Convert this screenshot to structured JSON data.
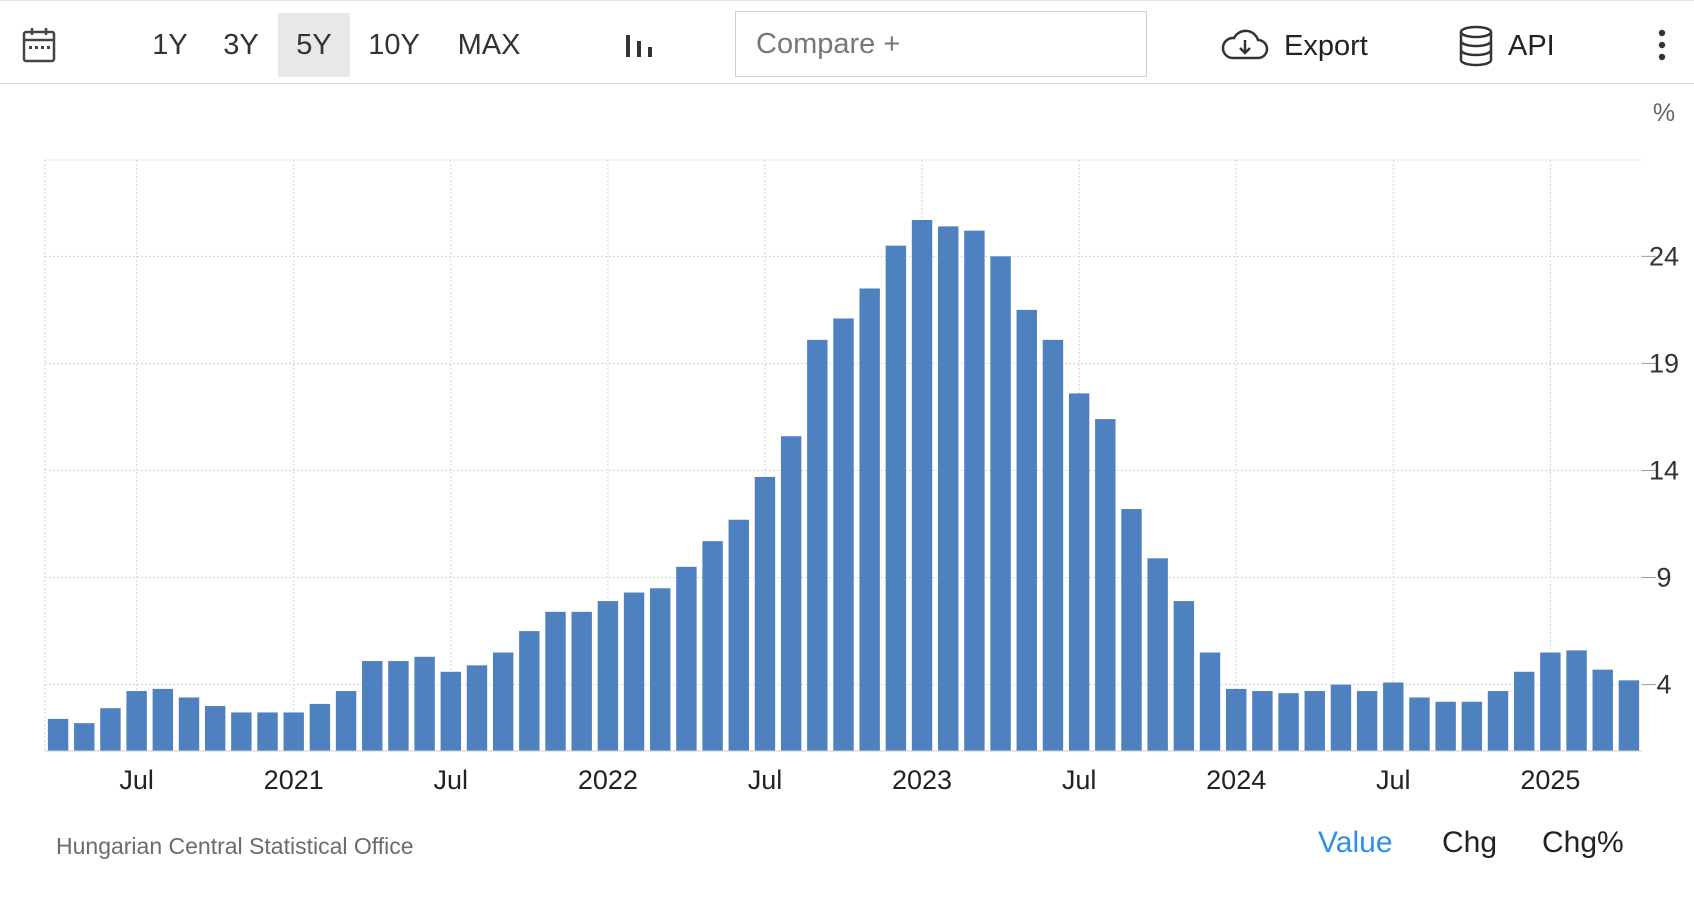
{
  "toolbar": {
    "ranges": [
      "1Y",
      "3Y",
      "5Y",
      "10Y",
      "MAX"
    ],
    "active_range": "5Y",
    "compare_placeholder": "Compare +",
    "export_label": "Export",
    "api_label": "API",
    "icons": {
      "calendar": "calendar-icon",
      "chart_type": "bar-chart-icon",
      "export": "cloud-download-icon",
      "api": "database-icon",
      "more": "more-vertical-icon"
    }
  },
  "chart_data": {
    "type": "bar",
    "unit": "%",
    "bar_color": "#4f81c0",
    "grid": true,
    "y_axis_position": "right",
    "ylim": [
      0.9,
      28.5
    ],
    "yticks": [
      4,
      9,
      14,
      19,
      24
    ],
    "x_labels": [
      "Jul",
      "2021",
      "Jul",
      "2022",
      "Jul",
      "2023",
      "Jul",
      "2024",
      "Jul",
      "2025"
    ],
    "categories": [
      "2020-04",
      "2020-05",
      "2020-06",
      "2020-07",
      "2020-08",
      "2020-09",
      "2020-10",
      "2020-11",
      "2020-12",
      "2021-01",
      "2021-02",
      "2021-03",
      "2021-04",
      "2021-05",
      "2021-06",
      "2021-07",
      "2021-08",
      "2021-09",
      "2021-10",
      "2021-11",
      "2021-12",
      "2022-01",
      "2022-02",
      "2022-03",
      "2022-04",
      "2022-05",
      "2022-06",
      "2022-07",
      "2022-08",
      "2022-09",
      "2022-10",
      "2022-11",
      "2022-12",
      "2023-01",
      "2023-02",
      "2023-03",
      "2023-04",
      "2023-05",
      "2023-06",
      "2023-07",
      "2023-08",
      "2023-09",
      "2023-10",
      "2023-11",
      "2023-12",
      "2024-01",
      "2024-02",
      "2024-03",
      "2024-04",
      "2024-05",
      "2024-06",
      "2024-07",
      "2024-08",
      "2024-09",
      "2024-10",
      "2024-11",
      "2024-12",
      "2025-01",
      "2025-02",
      "2025-03",
      "2025-04"
    ],
    "values": [
      2.4,
      2.2,
      2.9,
      3.7,
      3.8,
      3.4,
      3.0,
      2.7,
      2.7,
      2.7,
      3.1,
      3.7,
      5.1,
      5.1,
      5.3,
      4.6,
      4.9,
      5.5,
      6.5,
      7.4,
      7.4,
      7.9,
      8.3,
      8.5,
      9.5,
      10.7,
      11.7,
      13.7,
      15.6,
      20.1,
      21.1,
      22.5,
      24.5,
      25.7,
      25.4,
      25.2,
      24.0,
      21.5,
      20.1,
      17.6,
      16.4,
      12.2,
      9.9,
      7.9,
      5.5,
      3.8,
      3.7,
      3.6,
      3.7,
      4.0,
      3.7,
      4.1,
      3.4,
      3.2,
      3.2,
      3.7,
      4.6,
      5.5,
      5.6,
      4.7,
      4.2
    ]
  },
  "footer": {
    "source": "Hungarian Central Statistical Office",
    "modes": [
      "Value",
      "Chg",
      "Chg%"
    ],
    "active_mode": "Value"
  }
}
